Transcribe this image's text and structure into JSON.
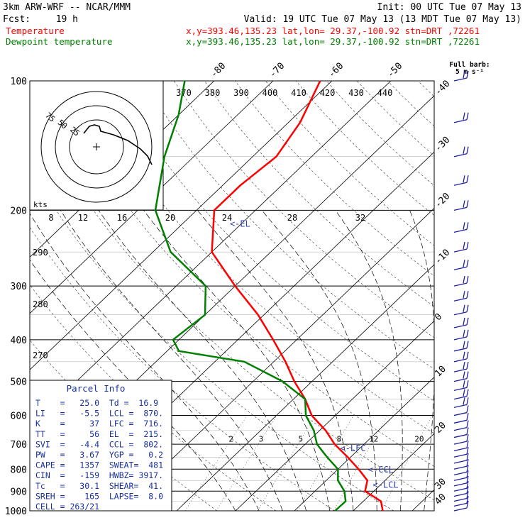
{
  "header": {
    "model": "3km ARW-WRF -- NCAR/MMM",
    "init": "Init: 00 UTC Tue 07 May 13",
    "fcst_label": "Fcst:",
    "fcst_value": "19 h",
    "valid": "Valid: 19 UTC Tue 07 May 13 (13 MDT Tue 07 May 13)",
    "series": [
      {
        "label": "Temperature",
        "color": "#ff0000",
        "info": "x,y=393.46,135.23   lat,lon= 29.37,-100.92  stn=DRT ,72261"
      },
      {
        "label": "Dewpoint temperature",
        "color": "#008000",
        "info": "x,y=393.46,135.23   lat,lon= 29.37,-100.92  stn=DRT ,72261"
      }
    ]
  },
  "barb_legend": {
    "line1": "Full barb:",
    "line2": "5 m s⁻¹"
  },
  "chart_data": {
    "type": "line",
    "pressure_ticks": [
      "100",
      "200",
      "300",
      "400",
      "500",
      "600",
      "700",
      "800",
      "900",
      "1000"
    ],
    "temperature_ticks": [
      "-80",
      "-70",
      "-60",
      "-50",
      "-40",
      "-30",
      "-20",
      "-10",
      "0",
      "10",
      "20",
      "30",
      "40"
    ],
    "theta_ticks": [
      "370",
      "380",
      "390",
      "400",
      "410",
      "420",
      "430",
      "440"
    ],
    "theta_left_ticks": [
      "290",
      "280",
      "270"
    ],
    "mixing_ratio_ticks": [
      "2",
      "3",
      "5",
      "8",
      "12",
      "20"
    ],
    "hodograph": {
      "units_label": "kts",
      "speed_ticks": [
        "8",
        "12",
        "16",
        "20",
        "24",
        "28",
        "32"
      ],
      "ring_labels": [
        "75",
        "50",
        "25"
      ]
    },
    "series": [
      {
        "name": "Temperature",
        "color": "#ff0000",
        "points": [
          [
            1000,
            25.0
          ],
          [
            950,
            23
          ],
          [
            900,
            18.5
          ],
          [
            850,
            17
          ],
          [
            800,
            13.5
          ],
          [
            750,
            9.5
          ],
          [
            700,
            5
          ],
          [
            650,
            1
          ],
          [
            600,
            -4
          ],
          [
            550,
            -8
          ],
          [
            500,
            -13
          ],
          [
            450,
            -18
          ],
          [
            400,
            -24
          ],
          [
            350,
            -31
          ],
          [
            300,
            -40
          ],
          [
            250,
            -50
          ],
          [
            200,
            -57
          ],
          [
            175,
            -57
          ],
          [
            150,
            -56
          ],
          [
            125,
            -58
          ],
          [
            100,
            -62
          ]
        ]
      },
      {
        "name": "Dewpoint temperature",
        "color": "#008000",
        "points": [
          [
            1000,
            16.9
          ],
          [
            950,
            17
          ],
          [
            900,
            15
          ],
          [
            850,
            12
          ],
          [
            800,
            10
          ],
          [
            750,
            6
          ],
          [
            700,
            2
          ],
          [
            650,
            -1
          ],
          [
            600,
            -5
          ],
          [
            550,
            -8
          ],
          [
            500,
            -15
          ],
          [
            450,
            -25
          ],
          [
            425,
            -38
          ],
          [
            400,
            -41
          ],
          [
            350,
            -40
          ],
          [
            300,
            -45
          ],
          [
            250,
            -57
          ],
          [
            200,
            -67
          ],
          [
            150,
            -75
          ],
          [
            120,
            -80
          ],
          [
            100,
            -85
          ]
        ]
      }
    ],
    "levels": [
      {
        "label": "<-EL",
        "pressure": 215
      },
      {
        "label": "<-LFC",
        "pressure": 716
      },
      {
        "label": "<-CCL",
        "pressure": 802
      },
      {
        "label": "<-LCL",
        "pressure": 870
      }
    ],
    "parcel_info": {
      "title": "Parcel Info",
      "rows": [
        "T    =   25.0  Td =  16.9",
        "LI   =   -5.5  LCL =  870.",
        "K    =     37  LFC =  716.",
        "TT   =     56  EL  =  215.",
        "SVI  =   -4.4  CCL =  802.",
        "PW   =   3.67  YGP =   0.2",
        "CAPE =   1357  SWEAT=  481",
        "CIN  =   -159  HWBZ= 3917.",
        "Tc   =   30.1  SHEAR=  41.",
        "SREH =    165  LAPSE=  8.0",
        "CELL = 263/21"
      ]
    }
  }
}
